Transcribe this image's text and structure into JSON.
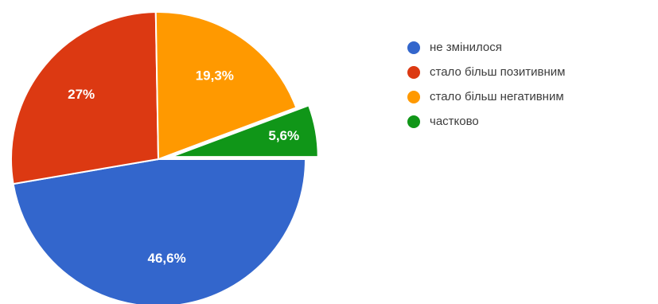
{
  "chart_data": {
    "type": "pie",
    "categories": [
      "не змінилося",
      "стало більш позитивним",
      "стало більш негативним",
      "частково"
    ],
    "values": [
      46.6,
      27,
      19.3,
      5.6
    ],
    "data_labels": [
      "46,6%",
      "27%",
      "19,3%",
      "5,6%"
    ],
    "colors": [
      "#3366cc",
      "#dc3912",
      "#ff9900",
      "#109618"
    ],
    "exploded": [
      false,
      false,
      false,
      true
    ],
    "legend_position": "right",
    "start_angle_deg": 90,
    "direction": "clockwise"
  }
}
